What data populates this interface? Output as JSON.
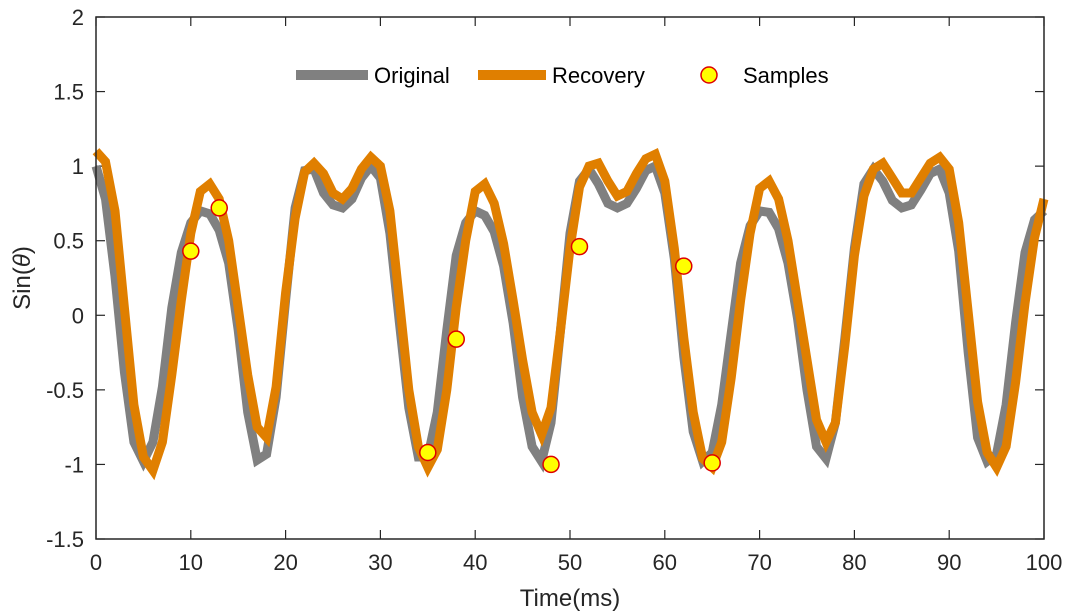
{
  "chart_data": {
    "type": "line",
    "xlabel": "Time(ms)",
    "ylabel_prefix": "Sin(",
    "ylabel_symbol": "θ",
    "ylabel_suffix": ")",
    "xlim": [
      0,
      100
    ],
    "ylim": [
      -1.5,
      2
    ],
    "xticks": [
      0,
      10,
      20,
      30,
      40,
      50,
      60,
      70,
      80,
      90,
      100
    ],
    "yticks": [
      -1.5,
      -1,
      -0.5,
      0,
      0.5,
      1,
      1.5,
      2
    ],
    "grid": false,
    "legend_position": "top",
    "x": [
      0,
      1,
      2,
      3,
      4,
      5,
      6,
      7,
      8,
      9,
      10,
      11,
      12,
      13,
      14,
      15,
      16,
      17,
      18,
      19,
      20,
      21,
      22,
      23,
      24,
      25,
      26,
      27,
      28,
      29,
      30,
      31,
      32,
      33,
      34,
      35,
      36,
      37,
      38,
      39,
      40,
      41,
      42,
      43,
      44,
      45,
      46,
      47,
      48,
      49,
      50,
      51,
      52,
      53,
      54,
      55,
      56,
      57,
      58,
      59,
      60,
      61,
      62,
      63,
      64,
      65,
      66,
      67,
      68,
      69,
      70,
      71,
      72,
      73,
      74,
      75,
      76,
      77,
      78,
      79,
      80,
      81,
      82,
      83,
      84,
      85,
      86,
      87,
      88,
      89,
      90,
      91,
      92,
      93,
      94,
      95,
      96,
      97,
      98,
      99,
      100
    ],
    "series": [
      {
        "name": "Original",
        "color": "#808080",
        "style": "line",
        "values": [
          1.0,
          0.78,
          0.26,
          -0.38,
          -0.85,
          -0.98,
          -0.85,
          -0.48,
          0.05,
          0.42,
          0.62,
          0.7,
          0.68,
          0.57,
          0.35,
          -0.1,
          -0.65,
          -0.97,
          -0.93,
          -0.55,
          0.1,
          0.72,
          0.97,
          0.98,
          0.82,
          0.74,
          0.72,
          0.78,
          0.92,
          1.0,
          0.92,
          0.55,
          -0.05,
          -0.62,
          -0.95,
          -0.95,
          -0.65,
          -0.1,
          0.4,
          0.62,
          0.7,
          0.67,
          0.56,
          0.33,
          -0.05,
          -0.55,
          -0.88,
          -0.98,
          -0.72,
          -0.1,
          0.55,
          0.9,
          0.98,
          0.88,
          0.75,
          0.72,
          0.75,
          0.85,
          0.97,
          1.0,
          0.82,
          0.38,
          -0.28,
          -0.78,
          -0.98,
          -0.92,
          -0.6,
          -0.12,
          0.35,
          0.6,
          0.7,
          0.69,
          0.58,
          0.35,
          -0.02,
          -0.5,
          -0.88,
          -0.96,
          -0.72,
          -0.15,
          0.45,
          0.88,
          0.98,
          0.9,
          0.77,
          0.72,
          0.74,
          0.84,
          0.95,
          0.98,
          0.82,
          0.43,
          -0.25,
          -0.82,
          -0.98,
          -0.93,
          -0.6,
          -0.05,
          0.42,
          0.64,
          0.7
        ]
      },
      {
        "name": "Recovery",
        "color": "#e07f00",
        "style": "line",
        "values": [
          1.1,
          1.03,
          0.7,
          0.05,
          -0.6,
          -0.95,
          -1.04,
          -0.85,
          -0.4,
          0.1,
          0.55,
          0.83,
          0.88,
          0.78,
          0.5,
          0.05,
          -0.4,
          -0.75,
          -0.82,
          -0.48,
          0.15,
          0.65,
          0.96,
          1.02,
          0.95,
          0.82,
          0.78,
          0.85,
          0.98,
          1.06,
          1.0,
          0.7,
          0.1,
          -0.5,
          -0.88,
          -1.02,
          -0.9,
          -0.5,
          0.05,
          0.5,
          0.83,
          0.88,
          0.75,
          0.48,
          0.1,
          -0.3,
          -0.65,
          -0.8,
          -0.62,
          -0.1,
          0.45,
          0.86,
          1.0,
          1.02,
          0.9,
          0.8,
          0.83,
          0.95,
          1.05,
          1.08,
          0.9,
          0.45,
          -0.15,
          -0.65,
          -0.96,
          -1.02,
          -0.85,
          -0.42,
          0.1,
          0.55,
          0.85,
          0.9,
          0.78,
          0.5,
          0.1,
          -0.3,
          -0.7,
          -0.85,
          -0.72,
          -0.2,
          0.4,
          0.8,
          0.98,
          1.02,
          0.92,
          0.82,
          0.82,
          0.92,
          1.02,
          1.06,
          0.98,
          0.62,
          0.02,
          -0.58,
          -0.92,
          -1.02,
          -0.88,
          -0.45,
          0.08,
          0.52,
          0.78
        ]
      }
    ],
    "samples": {
      "name": "Samples",
      "fill": "#ffff00",
      "stroke": "#dd0000",
      "x": [
        10,
        13,
        35,
        38,
        48,
        51,
        62,
        65
      ],
      "y": [
        0.43,
        0.72,
        -0.92,
        -0.16,
        -1.0,
        0.46,
        0.33,
        -0.99
      ]
    }
  }
}
